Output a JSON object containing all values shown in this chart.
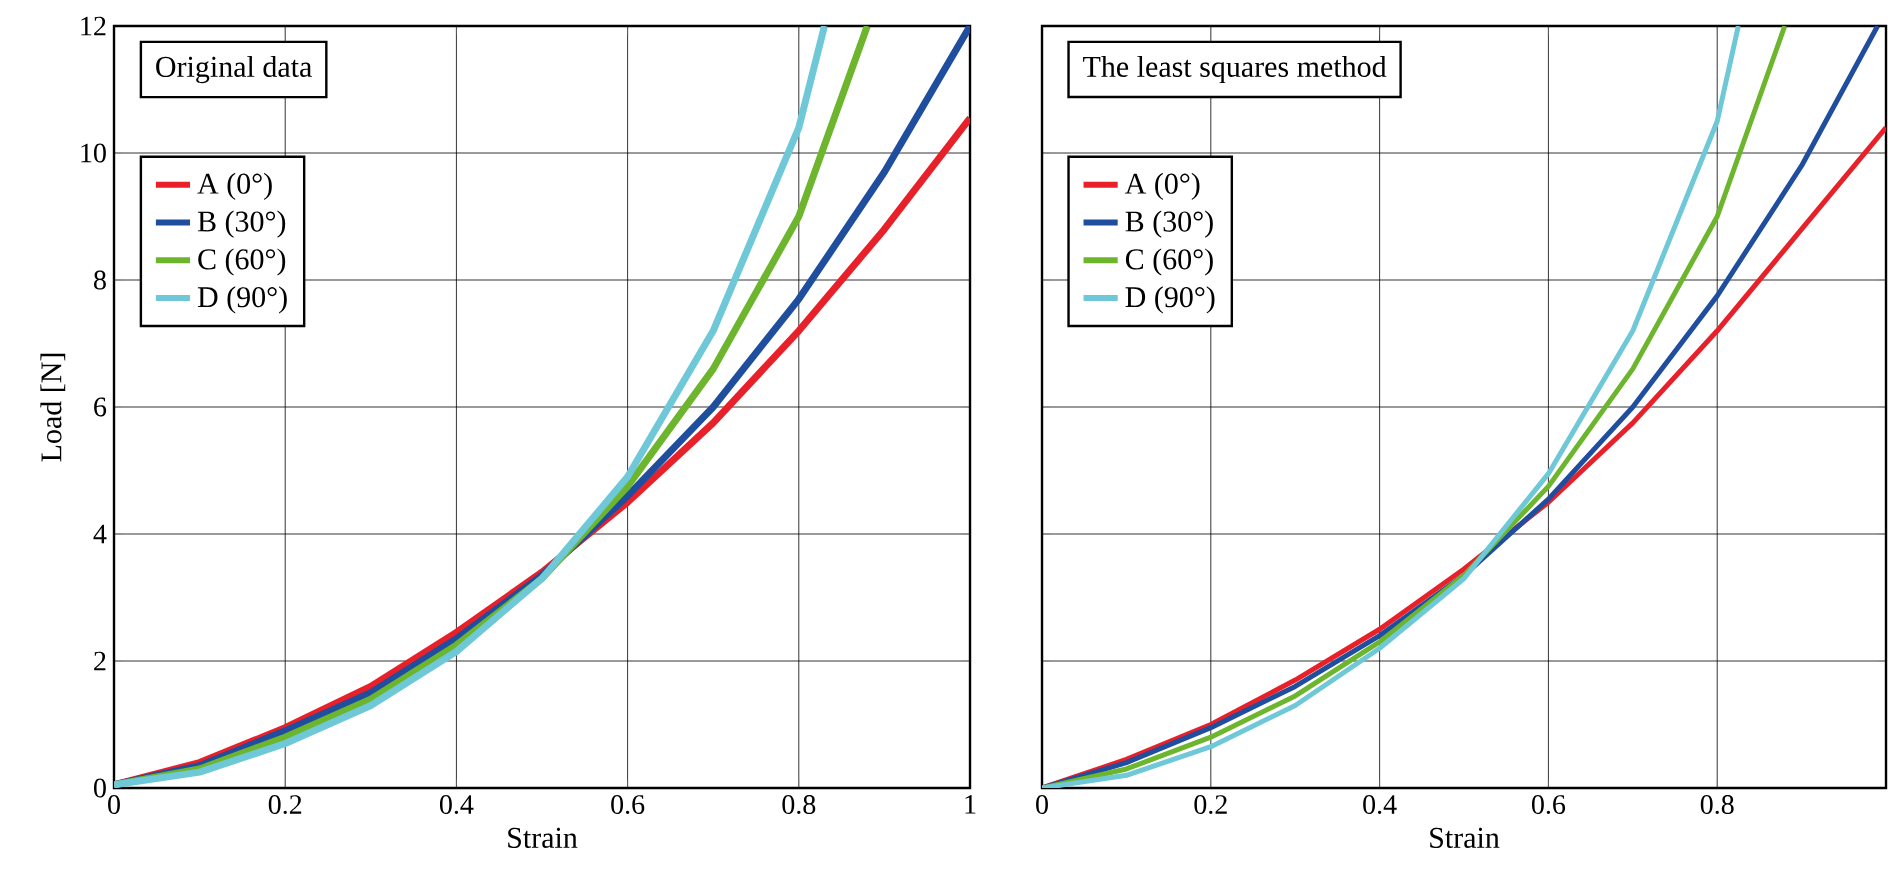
{
  "chart_data": [
    {
      "type": "line",
      "title": "Original data",
      "xlabel": "Strain",
      "ylabel": "Load [N]",
      "xlim": [
        0,
        1
      ],
      "ylim": [
        0,
        12
      ],
      "xticks": [
        0,
        0.2,
        0.4,
        0.6,
        0.8,
        1
      ],
      "yticks": [
        0,
        2,
        4,
        6,
        8,
        10,
        12
      ],
      "grid": true,
      "legend": "top left",
      "marker": "none",
      "line_style": "solid",
      "series": [
        {
          "name": "A (0°)",
          "color": "#e8202a",
          "x": [
            0,
            0.1,
            0.2,
            0.3,
            0.4,
            0.5,
            0.6,
            0.7,
            0.8,
            0.9,
            1.0
          ],
          "values": [
            0.05,
            0.4,
            0.95,
            1.6,
            2.45,
            3.4,
            4.5,
            5.75,
            7.2,
            8.8,
            10.55
          ]
        },
        {
          "name": "B (30°)",
          "color": "#1f4e9f",
          "x": [
            0,
            0.1,
            0.2,
            0.3,
            0.4,
            0.5,
            0.6,
            0.7,
            0.8,
            0.9,
            1.0
          ],
          "values": [
            0.05,
            0.35,
            0.9,
            1.5,
            2.35,
            3.35,
            4.6,
            6.0,
            7.7,
            9.7,
            12
          ]
        },
        {
          "name": "C (60°)",
          "color": "#6cb52d",
          "x": [
            0,
            0.1,
            0.2,
            0.3,
            0.4,
            0.5,
            0.6,
            0.7,
            0.8,
            0.88
          ],
          "values": [
            0.05,
            0.3,
            0.8,
            1.4,
            2.25,
            3.3,
            4.75,
            6.6,
            9.0,
            12
          ]
        },
        {
          "name": "D (90°)",
          "color": "#6ec8d8",
          "x": [
            0,
            0.1,
            0.2,
            0.3,
            0.4,
            0.5,
            0.6,
            0.7,
            0.8,
            0.83
          ],
          "values": [
            0.05,
            0.25,
            0.7,
            1.3,
            2.15,
            3.3,
            4.9,
            7.2,
            10.4,
            12
          ]
        }
      ]
    },
    {
      "type": "line",
      "title": "The least squares method",
      "xlabel": "Strain",
      "xlim": [
        0,
        1
      ],
      "ylim": [
        0,
        12
      ],
      "xticks": [
        0,
        0.2,
        0.4,
        0.6,
        0.8
      ],
      "yticks": [
        0,
        2,
        4,
        6,
        8,
        10,
        12
      ],
      "tick_labels": "x",
      "grid": true,
      "legend": "top left",
      "marker": "none",
      "line_style": "solid",
      "series": [
        {
          "name": "A (0°)",
          "color": "#e8202a",
          "x": [
            0,
            0.1,
            0.2,
            0.3,
            0.4,
            0.5,
            0.6,
            0.7,
            0.8,
            0.9,
            1.0
          ],
          "values": [
            0,
            0.45,
            1.0,
            1.7,
            2.5,
            3.45,
            4.5,
            5.75,
            7.2,
            8.8,
            10.4
          ]
        },
        {
          "name": "B (30°)",
          "color": "#1f4e9f",
          "x": [
            0,
            0.1,
            0.2,
            0.3,
            0.4,
            0.5,
            0.6,
            0.7,
            0.8,
            0.9,
            0.99
          ],
          "values": [
            0,
            0.4,
            0.95,
            1.6,
            2.4,
            3.35,
            4.55,
            6.0,
            7.75,
            9.8,
            12
          ]
        },
        {
          "name": "C (60°)",
          "color": "#6cb52d",
          "x": [
            0,
            0.1,
            0.2,
            0.3,
            0.4,
            0.5,
            0.6,
            0.7,
            0.8,
            0.88
          ],
          "values": [
            0,
            0.3,
            0.8,
            1.45,
            2.3,
            3.35,
            4.75,
            6.6,
            9.0,
            12
          ]
        },
        {
          "name": "D (90°)",
          "color": "#6ec8d8",
          "x": [
            0,
            0.1,
            0.2,
            0.3,
            0.4,
            0.5,
            0.6,
            0.7,
            0.8,
            0.825
          ],
          "values": [
            0,
            0.2,
            0.65,
            1.3,
            2.2,
            3.3,
            4.95,
            7.2,
            10.5,
            12
          ]
        }
      ]
    }
  ]
}
